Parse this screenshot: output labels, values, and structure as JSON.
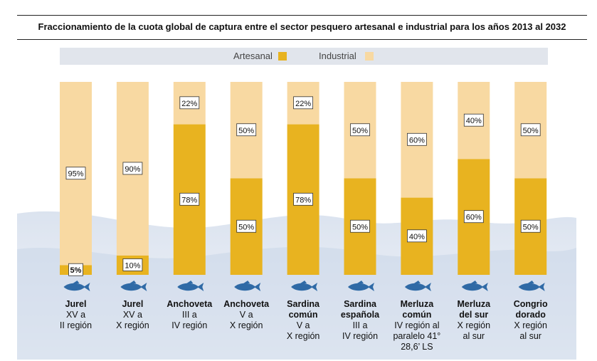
{
  "chart_data": {
    "type": "bar",
    "stacked": true,
    "title": "Fraccionamiento de la cuota global de captura entre el sector pesquero artesanal e industrial para los años 2013 al 2032",
    "legend": {
      "placement": "top"
    },
    "ylim": [
      0,
      100
    ],
    "categories": [
      {
        "name": "Jurel",
        "region": "XV a\nII región"
      },
      {
        "name": "Jurel",
        "region": "XV a\nX región"
      },
      {
        "name": "Anchoveta",
        "region": "III a\nIV región"
      },
      {
        "name": "Anchoveta",
        "region": "V a\nX región"
      },
      {
        "name": "Sardina\ncomún",
        "region": "V a\nX región"
      },
      {
        "name": "Sardina\nespañola",
        "region": "III a\nIV región"
      },
      {
        "name": "Merluza\ncomún",
        "region": "IV región al\nparalelo 41°\n28,6’ LS"
      },
      {
        "name": "Merluza\ndel sur",
        "region": "X región\nal sur"
      },
      {
        "name": "Congrio\ndorado",
        "region": "X región\nal sur"
      }
    ],
    "series": [
      {
        "name": "Artesanal",
        "color": "#e8b320",
        "values": [
          5,
          10,
          78,
          50,
          78,
          50,
          40,
          60,
          50
        ],
        "labels": [
          "5%",
          "10%",
          "78%",
          "50%",
          "78%",
          "50%",
          "40%",
          "60%",
          "50%"
        ]
      },
      {
        "name": "Industrial",
        "color": "#f8d9a2",
        "values": [
          95,
          90,
          22,
          50,
          22,
          50,
          60,
          40,
          50
        ],
        "labels": [
          "95%",
          "90%",
          "22%",
          "50%",
          "22%",
          "50%",
          "60%",
          "40%",
          "50%"
        ]
      }
    ]
  }
}
